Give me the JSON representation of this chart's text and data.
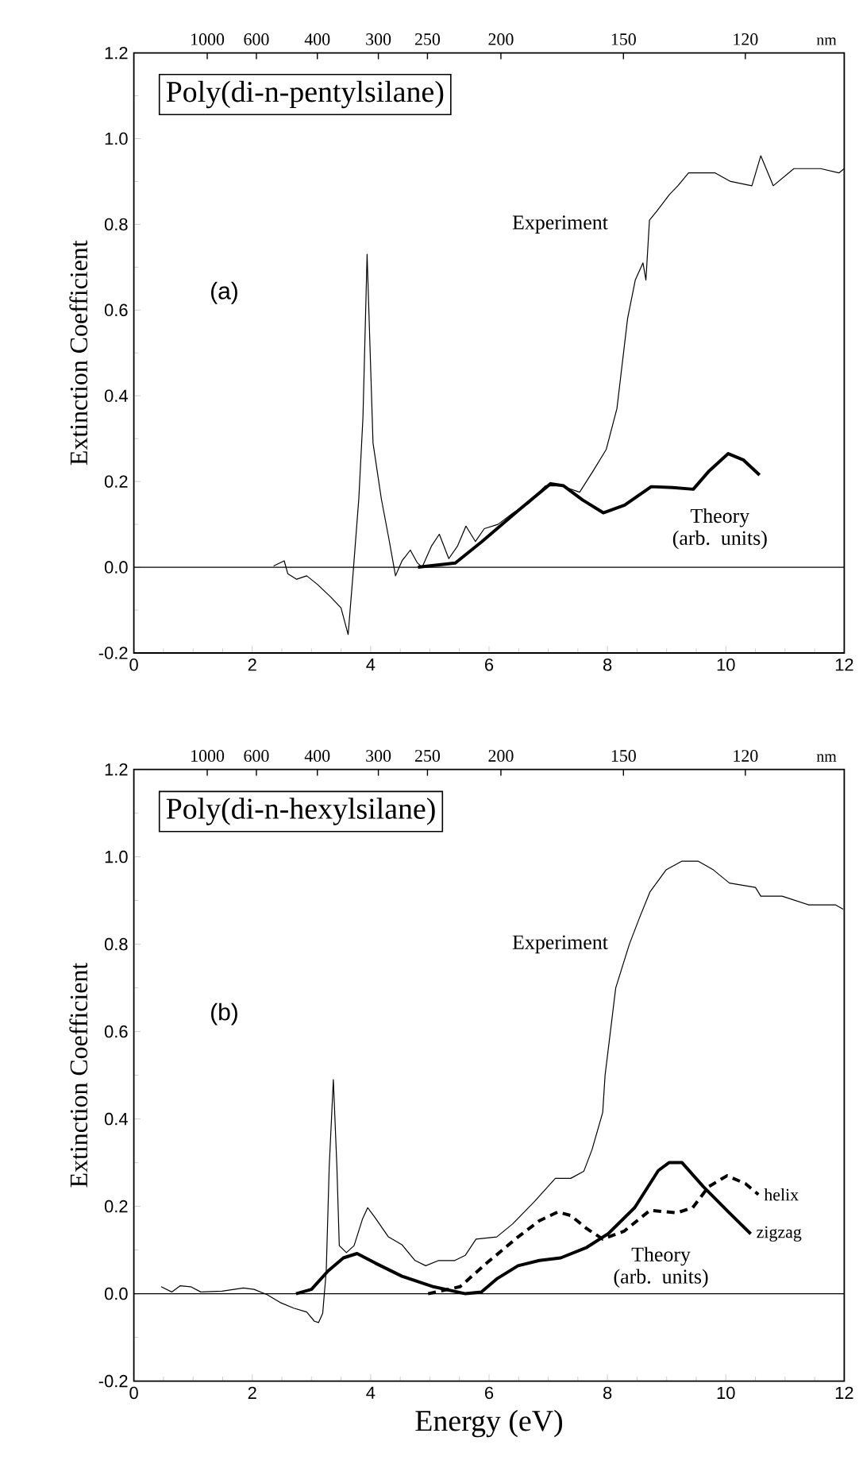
{
  "chart_data": [
    {
      "type": "line",
      "title": "Poly(di-n-pentylsilane)",
      "ylabel": "Extinction Coefficient",
      "xlim": [
        0,
        12
      ],
      "xticks": [
        0,
        2,
        4,
        6,
        8,
        10,
        12
      ],
      "ylim": [
        -0.2,
        1.2
      ],
      "yticks": [
        {
          "value": -0.2,
          "label": "-0.2"
        },
        {
          "value": 0,
          "label": "0.0"
        },
        {
          "value": 0.2,
          "label": "0.2"
        },
        {
          "value": 0.4,
          "label": "0.4"
        },
        {
          "value": 0.6,
          "label": "0.6"
        },
        {
          "value": 0.8,
          "label": "0.8"
        },
        {
          "value": 1.0,
          "label": "1.0"
        },
        {
          "value": 1.2,
          "label": "1.2"
        }
      ],
      "ref_lines": [
        {
          "axis": "y",
          "value": 0,
          "color": "#000000"
        }
      ],
      "annotations": [
        "Experiment",
        "Theory (arb. units)",
        "(a)",
        "1000",
        "600",
        "400",
        "300",
        "250",
        "200",
        "150",
        "120",
        "nm"
      ],
      "series": [
        {
          "color": "#000000",
          "line_style": "solid",
          "x": [
            2.36,
            2.54,
            2.6,
            2.75,
            2.92,
            3.1,
            3.33,
            3.5,
            3.62,
            3.7,
            3.8,
            3.87,
            3.94,
            4.04,
            4.18,
            4.31,
            4.42,
            4.53,
            4.67,
            4.79,
            4.87,
            5.03,
            5.16,
            5.32,
            5.47,
            5.61,
            5.77,
            5.92,
            6.15,
            6.41,
            6.68,
            6.95,
            7.22,
            7.53,
            7.76,
            7.98,
            8.16,
            8.34,
            8.47,
            8.6,
            8.65,
            8.71,
            8.83,
            9.05,
            9.19,
            9.37,
            9.82,
            10.08,
            10.44,
            10.59,
            10.8,
            11.15,
            11.6,
            11.91,
            12.0
          ],
          "values": [
            0.003,
            0.015,
            -0.015,
            -0.028,
            -0.02,
            -0.04,
            -0.07,
            -0.095,
            -0.157,
            -0.02,
            0.16,
            0.35,
            0.73,
            0.29,
            0.16,
            0.065,
            -0.02,
            0.015,
            0.04,
            0.01,
            0.0,
            0.05,
            0.077,
            0.02,
            0.05,
            0.096,
            0.06,
            0.09,
            0.1,
            0.127,
            0.15,
            0.19,
            0.19,
            0.175,
            0.225,
            0.275,
            0.37,
            0.58,
            0.67,
            0.71,
            0.67,
            0.81,
            0.83,
            0.87,
            0.89,
            0.92,
            0.92,
            0.9,
            0.89,
            0.96,
            0.89,
            0.93,
            0.93,
            0.92,
            0.93
          ]
        },
        {
          "color": "#000000",
          "line_style": "solid",
          "x": [
            4.8,
            5.43,
            5.88,
            6.5,
            7.04,
            7.26,
            7.58,
            7.93,
            8.29,
            8.74,
            9.1,
            9.45,
            9.72,
            10.04,
            10.3,
            10.57
          ],
          "values": [
            0.0,
            0.01,
            0.06,
            0.133,
            0.195,
            0.19,
            0.157,
            0.127,
            0.145,
            0.188,
            0.186,
            0.182,
            0.225,
            0.265,
            0.25,
            0.215
          ]
        }
      ]
    },
    {
      "type": "line",
      "title": "Poly(di-n-hexylsilane)",
      "ylabel": "Extinction Coefficient",
      "xlabel": "Energy (eV)",
      "xlim": [
        0,
        12
      ],
      "xticks": [
        0,
        2,
        4,
        6,
        8,
        10,
        12
      ],
      "ylim": [
        -0.2,
        1.2
      ],
      "yticks": [
        {
          "value": -0.2,
          "label": "-0.2"
        },
        {
          "value": 0,
          "label": "0.0"
        },
        {
          "value": 0.2,
          "label": "0.2"
        },
        {
          "value": 0.4,
          "label": "0.4"
        },
        {
          "value": 0.6,
          "label": "0.6"
        },
        {
          "value": 0.8,
          "label": "0.8"
        },
        {
          "value": 1.0,
          "label": "1.0"
        },
        {
          "value": 1.2,
          "label": "1.2"
        }
      ],
      "ref_lines": [
        {
          "axis": "y",
          "value": 0,
          "color": "#000000"
        }
      ],
      "annotations": [
        "Experiment",
        "Theory (arb. units)",
        "(b)",
        "1000",
        "600",
        "400",
        "300",
        "250",
        "200",
        "150",
        "120",
        "nm"
      ],
      "series": [
        {
          "color": "#000000",
          "line_style": "solid",
          "x": [
            0.46,
            0.64,
            0.78,
            0.96,
            1.13,
            1.49,
            1.85,
            2.03,
            2.25,
            2.47,
            2.7,
            2.92,
            3.05,
            3.12,
            3.19,
            3.25,
            3.3,
            3.37,
            3.43,
            3.47,
            3.59,
            3.72,
            3.86,
            3.95,
            4.08,
            4.3,
            4.53,
            4.75,
            4.93,
            5.15,
            5.42,
            5.6,
            5.78,
            6.13,
            6.4,
            6.76,
            7.12,
            7.38,
            7.6,
            7.74,
            7.92,
            7.96,
            8.14,
            8.37,
            8.54,
            8.72,
            8.99,
            9.26,
            9.53,
            9.79,
            10.06,
            10.5,
            10.59,
            10.95,
            11.4,
            11.85,
            11.98
          ],
          "values": [
            0.016,
            0.004,
            0.018,
            0.016,
            0.004,
            0.006,
            0.013,
            0.01,
            -0.002,
            -0.02,
            -0.033,
            -0.042,
            -0.063,
            -0.066,
            -0.045,
            0.052,
            0.29,
            0.49,
            0.29,
            0.11,
            0.094,
            0.11,
            0.17,
            0.197,
            0.173,
            0.13,
            0.112,
            0.076,
            0.064,
            0.076,
            0.076,
            0.088,
            0.125,
            0.13,
            0.16,
            0.21,
            0.264,
            0.264,
            0.28,
            0.33,
            0.415,
            0.5,
            0.7,
            0.8,
            0.86,
            0.92,
            0.97,
            0.99,
            0.99,
            0.97,
            0.94,
            0.93,
            0.91,
            0.91,
            0.89,
            0.89,
            0.88
          ]
        },
        {
          "name": "helix",
          "color": "#000000",
          "line_style": "dashed",
          "x": [
            4.97,
            5.51,
            5.96,
            6.49,
            6.85,
            7.16,
            7.38,
            7.65,
            7.92,
            8.28,
            8.72,
            9.17,
            9.44,
            9.71,
            10.02,
            10.33,
            10.55
          ],
          "values": [
            0.0,
            0.016,
            0.07,
            0.13,
            0.167,
            0.187,
            0.179,
            0.149,
            0.125,
            0.143,
            0.191,
            0.185,
            0.197,
            0.245,
            0.27,
            0.252,
            0.227
          ]
        },
        {
          "name": "zigzag",
          "color": "#000000",
          "line_style": "solid",
          "x": [
            2.74,
            3.0,
            3.28,
            3.54,
            3.77,
            4.08,
            4.53,
            5.06,
            5.6,
            5.87,
            6.13,
            6.49,
            6.85,
            7.21,
            7.65,
            8.01,
            8.46,
            8.86,
            9.04,
            9.26,
            9.62,
            10.06,
            10.42
          ],
          "values": [
            0.0,
            0.01,
            0.052,
            0.082,
            0.092,
            0.07,
            0.04,
            0.016,
            0.0,
            0.004,
            0.034,
            0.064,
            0.076,
            0.082,
            0.106,
            0.137,
            0.197,
            0.282,
            0.3,
            0.3,
            0.245,
            0.185,
            0.137
          ]
        }
      ]
    }
  ]
}
